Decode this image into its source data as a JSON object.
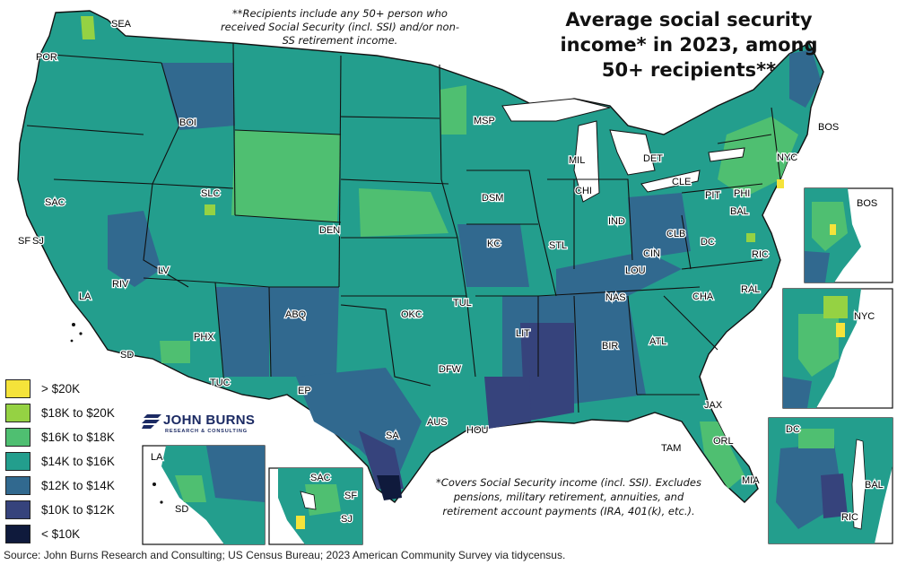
{
  "title": "Average social security income* in 2023, among 50+ recipients**",
  "note_top": "**Recipients include any 50+ person who received Social Security (incl. SSI) and/or non-SS retirement income.",
  "note_bottom": "*Covers Social Security income (incl. SSI). Excludes pensions, military retirement, annuities, and retirement account payments (IRA, 401(k), etc.).",
  "source": "Source: John Burns Research and Consulting; US Census Bureau; 2023 American Community Survey via tidycensus.",
  "logo": {
    "name": "JOHN BURNS",
    "subtitle": "RESEARCH & CONSULTING"
  },
  "colors": {
    "gt20": "#f5e33a",
    "c18_20": "#95d243",
    "c16_18": "#4fbf71",
    "c14_16": "#239e8d",
    "c12_14": "#31698f",
    "c10_12": "#36437c",
    "lt10": "#0f1a3c",
    "ocean": "#ffffff",
    "border": "#111111"
  },
  "legend": [
    {
      "label": "> $20K",
      "color": "#f5e33a"
    },
    {
      "label": "$18K to $20K",
      "color": "#95d243"
    },
    {
      "label": "$16K to $18K",
      "color": "#4fbf71"
    },
    {
      "label": "$14K to $16K",
      "color": "#239e8d"
    },
    {
      "label": "$12K to $14K",
      "color": "#31698f"
    },
    {
      "label": "$10K to $12K",
      "color": "#36437c"
    },
    {
      "label": "< $10K",
      "color": "#0f1a3c"
    }
  ],
  "cities": {
    "sea": "SEA",
    "por": "POR",
    "boi": "BOI",
    "slc": "SLC",
    "sac": "SAC",
    "sf": "SF",
    "sj": "SJ",
    "lv": "LV",
    "riv": "RIV",
    "la": "LA",
    "sd": "SD",
    "phx": "PHX",
    "tuc": "TUC",
    "abq": "ABQ",
    "ep": "EP",
    "den": "DEN",
    "msp": "MSP",
    "dsm": "DSM",
    "kc": "KC",
    "okc": "OKC",
    "tul": "TUL",
    "dfw": "DFW",
    "aus": "AUS",
    "sa": "SA",
    "hou": "HOU",
    "lit": "LIT",
    "stl": "STL",
    "mil": "MIL",
    "chi": "CHI",
    "det": "DET",
    "ind": "IND",
    "cin": "CIN",
    "lou": "LOU",
    "nas": "NAS",
    "bir": "BIR",
    "atl": "ATL",
    "cha": "CHA",
    "clb": "CLB",
    "cle": "CLE",
    "pit": "PIT",
    "phi": "PHI",
    "bal": "BAL",
    "dc": "DC",
    "ric": "RIC",
    "ral": "RAL",
    "nyc": "NYC",
    "bos": "BOS",
    "jax": "JAX",
    "orl": "ORL",
    "tam": "TAM",
    "mia": "MIA"
  },
  "insets": {
    "bos": "BOS",
    "nyc": "NYC",
    "dc": "DC",
    "bal": "BAL",
    "ric": "RIC",
    "la": "LA",
    "sd": "SD",
    "sac": "SAC",
    "sf": "SF",
    "sj": "SJ"
  }
}
